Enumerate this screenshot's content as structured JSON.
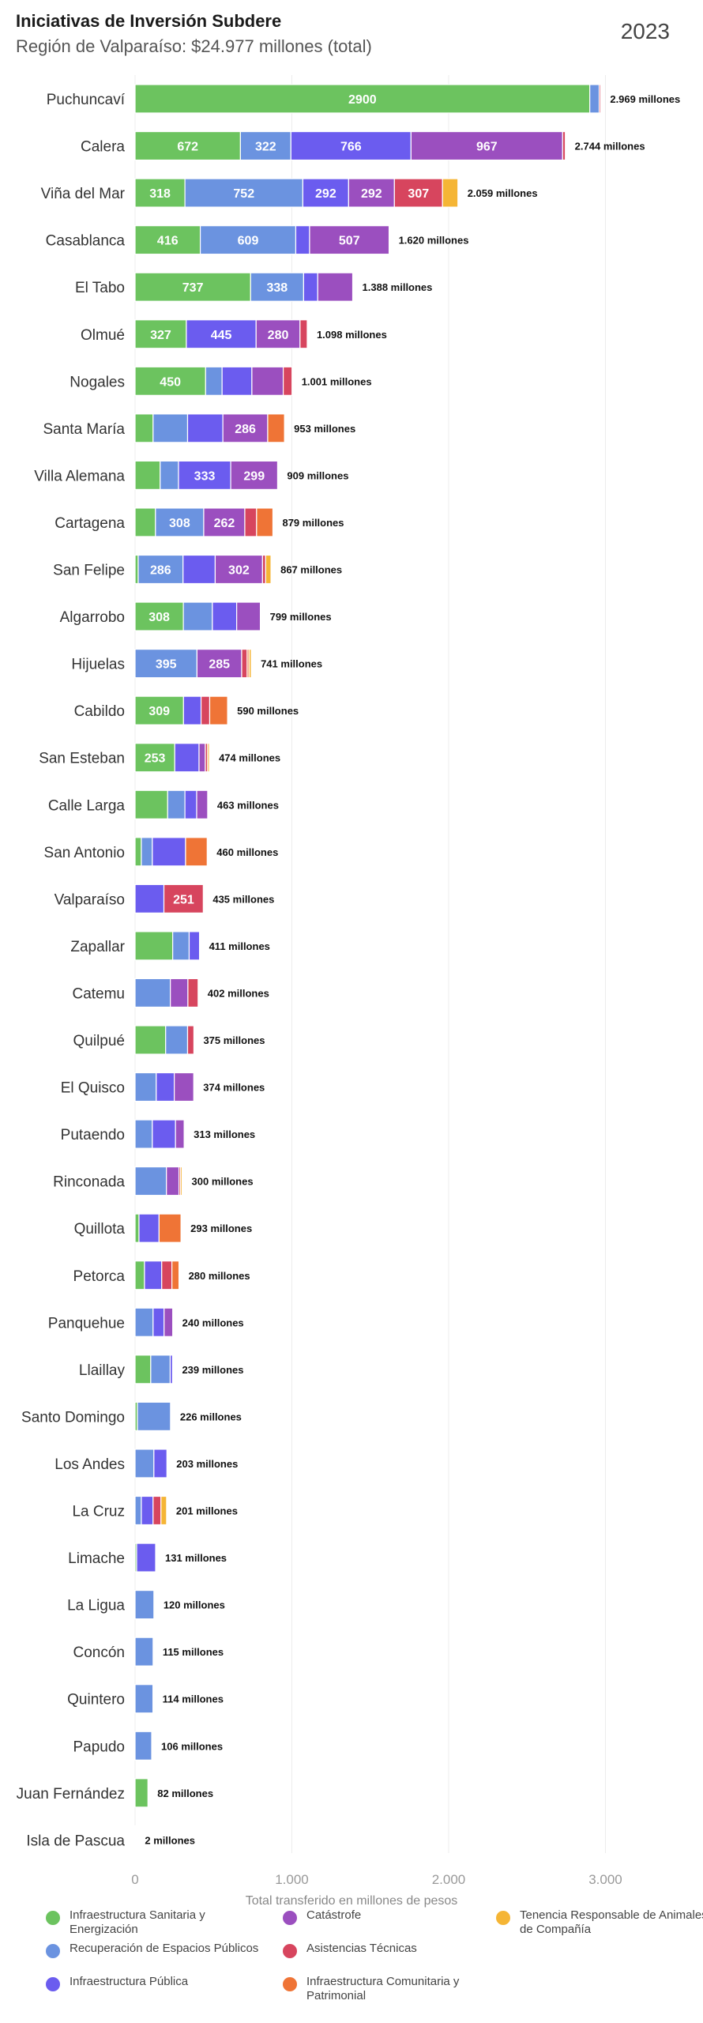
{
  "header": {
    "title": "Iniciativas de Inversión Subdere",
    "subtitle": "Región de Valparaíso: $24.977 millones (total)",
    "year": "2023"
  },
  "colors": {
    "sanitaria": "#6cc35f",
    "espacios": "#6b93e0",
    "publica": "#6b5cef",
    "catastrofe": "#9b4fbf",
    "asistencias": "#d7455e",
    "comunitaria": "#ef7436",
    "tenencia": "#f5b535"
  },
  "chart_data": {
    "type": "bar",
    "orientation": "horizontal",
    "stacked": true,
    "xlabel": "Total transferido en millones de pesos",
    "xlim": [
      0,
      3500
    ],
    "xticks": [
      "0",
      "1.000",
      "2.000",
      "3.000"
    ],
    "grid": true,
    "legend_position": "bottom",
    "series_keys": [
      "sanitaria",
      "espacios",
      "publica",
      "catastrofe",
      "asistencias",
      "comunitaria",
      "tenencia"
    ],
    "series_names": [
      "Infraestructura Sanitaria y Energización",
      "Recuperación de Espacios Públicos",
      "Infraestructura Pública",
      "Catástrofe",
      "Asistencias Técnicas",
      "Infraestructura Comunitaria y Patrimonial",
      "Tenencia Responsable de Animales de Compañía"
    ],
    "rows": [
      {
        "name": "Puchuncaví",
        "total_label": "2.969 millones",
        "values": [
          2900,
          60,
          0,
          0,
          9,
          0,
          0
        ],
        "labels": [
          "2900",
          "",
          "",
          "",
          "",
          "",
          ""
        ]
      },
      {
        "name": "Calera",
        "total_label": "2.744 millones",
        "values": [
          672,
          322,
          766,
          967,
          17,
          0,
          0
        ],
        "labels": [
          "672",
          "322",
          "766",
          "967",
          "",
          "",
          ""
        ]
      },
      {
        "name": "Viña del Mar",
        "total_label": "2.059 millones",
        "values": [
          318,
          752,
          292,
          292,
          307,
          0,
          98
        ],
        "labels": [
          "318",
          "752",
          "292",
          "292",
          "307",
          "",
          ""
        ]
      },
      {
        "name": "Casablanca",
        "total_label": "1.620 millones",
        "values": [
          416,
          609,
          88,
          507,
          0,
          0,
          0
        ],
        "labels": [
          "416",
          "609",
          "",
          "507",
          "",
          "",
          ""
        ]
      },
      {
        "name": "El Tabo",
        "total_label": "1.388 millones",
        "values": [
          737,
          338,
          90,
          223,
          0,
          0,
          0
        ],
        "labels": [
          "737",
          "338",
          "",
          "",
          "",
          "",
          ""
        ]
      },
      {
        "name": "Olmué",
        "total_label": "1.098 millones",
        "values": [
          327,
          0,
          445,
          280,
          46,
          0,
          0
        ],
        "labels": [
          "327",
          "",
          "445",
          "280",
          "",
          "",
          ""
        ]
      },
      {
        "name": "Nogales",
        "total_label": "1.001 millones",
        "values": [
          450,
          105,
          190,
          200,
          56,
          0,
          0
        ],
        "labels": [
          "450",
          "",
          "",
          "",
          "",
          "",
          ""
        ]
      },
      {
        "name": "Santa María",
        "total_label": "953 millones",
        "values": [
          115,
          220,
          225,
          286,
          0,
          107,
          0
        ],
        "labels": [
          "",
          "",
          "",
          "286",
          "",
          "",
          ""
        ]
      },
      {
        "name": "Villa Alemana",
        "total_label": "909 millones",
        "values": [
          160,
          117,
          333,
          299,
          0,
          0,
          0
        ],
        "labels": [
          "",
          "",
          "333",
          "299",
          "",
          "",
          ""
        ]
      },
      {
        "name": "Cartagena",
        "total_label": "879 millones",
        "values": [
          130,
          308,
          0,
          262,
          75,
          104,
          0
        ],
        "labels": [
          "",
          "308",
          "",
          "262",
          "",
          "",
          ""
        ]
      },
      {
        "name": "San Felipe",
        "total_label": "867 millones",
        "values": [
          20,
          286,
          205,
          302,
          20,
          0,
          34
        ],
        "labels": [
          "",
          "286",
          "",
          "302",
          "",
          "",
          ""
        ]
      },
      {
        "name": "Algarrobo",
        "total_label": "799 millones",
        "values": [
          308,
          185,
          155,
          151,
          0,
          0,
          0
        ],
        "labels": [
          "308",
          "",
          "",
          "",
          "",
          "",
          ""
        ]
      },
      {
        "name": "Hijuelas",
        "total_label": "741 millones",
        "values": [
          0,
          395,
          0,
          285,
          35,
          12,
          14
        ],
        "labels": [
          "",
          "395",
          "",
          "285",
          "",
          "",
          ""
        ]
      },
      {
        "name": "Cabildo",
        "total_label": "590 millones",
        "values": [
          309,
          0,
          112,
          0,
          55,
          114,
          0
        ],
        "labels": [
          "309",
          "",
          "",
          "",
          "",
          "",
          ""
        ]
      },
      {
        "name": "San Esteban",
        "total_label": "474 millones",
        "values": [
          253,
          0,
          155,
          40,
          15,
          0,
          11
        ],
        "labels": [
          "253",
          "",
          "",
          "",
          "",
          "",
          ""
        ]
      },
      {
        "name": "Calle Larga",
        "total_label": "463 millones",
        "values": [
          208,
          110,
          75,
          70,
          0,
          0,
          0
        ],
        "labels": [
          "",
          "",
          "",
          "",
          "",
          "",
          ""
        ]
      },
      {
        "name": "San Antonio",
        "total_label": "460 millones",
        "values": [
          40,
          70,
          212,
          0,
          0,
          138,
          0
        ],
        "labels": [
          "",
          "",
          "",
          "",
          "",
          "",
          ""
        ]
      },
      {
        "name": "Valparaíso",
        "total_label": "435 millones",
        "values": [
          0,
          0,
          184,
          0,
          251,
          0,
          0
        ],
        "labels": [
          "",
          "",
          "",
          "",
          "251",
          "",
          ""
        ]
      },
      {
        "name": "Zapallar",
        "total_label": "411 millones",
        "values": [
          240,
          105,
          66,
          0,
          0,
          0,
          0
        ],
        "labels": [
          "",
          "",
          "",
          "",
          "",
          "",
          ""
        ]
      },
      {
        "name": "Catemu",
        "total_label": "402 millones",
        "values": [
          0,
          225,
          0,
          112,
          65,
          0,
          0
        ],
        "labels": [
          "",
          "",
          "",
          "",
          "",
          "",
          ""
        ]
      },
      {
        "name": "Quilpué",
        "total_label": "375 millones",
        "values": [
          195,
          140,
          0,
          0,
          40,
          0,
          0
        ],
        "labels": [
          "",
          "",
          "",
          "",
          "",
          "",
          ""
        ]
      },
      {
        "name": "El Quisco",
        "total_label": "374 millones",
        "values": [
          0,
          135,
          115,
          124,
          0,
          0,
          0
        ],
        "labels": [
          "",
          "",
          "",
          "",
          "",
          "",
          ""
        ]
      },
      {
        "name": "Putaendo",
        "total_label": "313 millones",
        "values": [
          0,
          110,
          148,
          55,
          0,
          0,
          0
        ],
        "labels": [
          "",
          "",
          "",
          "",
          "",
          "",
          ""
        ]
      },
      {
        "name": "Rinconada",
        "total_label": "300 millones",
        "values": [
          0,
          200,
          0,
          80,
          10,
          0,
          10
        ],
        "labels": [
          "",
          "",
          "",
          "",
          "",
          "",
          ""
        ]
      },
      {
        "name": "Quillota",
        "total_label": "293 millones",
        "values": [
          25,
          0,
          128,
          0,
          0,
          140,
          0
        ],
        "labels": [
          "",
          "",
          "",
          "",
          "",
          "",
          ""
        ]
      },
      {
        "name": "Petorca",
        "total_label": "280 millones",
        "values": [
          60,
          0,
          110,
          0,
          65,
          45,
          0
        ],
        "labels": [
          "",
          "",
          "",
          "",
          "",
          "",
          ""
        ]
      },
      {
        "name": "Panquehue",
        "total_label": "240 millones",
        "values": [
          0,
          115,
          70,
          55,
          0,
          0,
          0
        ],
        "labels": [
          "",
          "",
          "",
          "",
          "",
          "",
          ""
        ]
      },
      {
        "name": "Llaillay",
        "total_label": "239 millones",
        "values": [
          100,
          124,
          15,
          0,
          0,
          0,
          0
        ],
        "labels": [
          "",
          "",
          "",
          "",
          "",
          "",
          ""
        ]
      },
      {
        "name": "Santo Domingo",
        "total_label": "226 millones",
        "values": [
          15,
          211,
          0,
          0,
          0,
          0,
          0
        ],
        "labels": [
          "",
          "",
          "",
          "",
          "",
          "",
          ""
        ]
      },
      {
        "name": "Los Andes",
        "total_label": "203 millones",
        "values": [
          0,
          120,
          83,
          0,
          0,
          0,
          0
        ],
        "labels": [
          "",
          "",
          "",
          "",
          "",
          "",
          ""
        ]
      },
      {
        "name": "La Cruz",
        "total_label": "201 millones",
        "values": [
          0,
          40,
          75,
          0,
          50,
          0,
          36
        ],
        "labels": [
          "",
          "",
          "",
          "",
          "",
          "",
          ""
        ]
      },
      {
        "name": "Limache",
        "total_label": "131 millones",
        "values": [
          10,
          0,
          121,
          0,
          0,
          0,
          0
        ],
        "labels": [
          "",
          "",
          "",
          "",
          "",
          "",
          ""
        ]
      },
      {
        "name": "La Ligua",
        "total_label": "120 millones",
        "values": [
          0,
          120,
          0,
          0,
          0,
          0,
          0
        ],
        "labels": [
          "",
          "",
          "",
          "",
          "",
          "",
          ""
        ]
      },
      {
        "name": "Concón",
        "total_label": "115 millones",
        "values": [
          0,
          115,
          0,
          0,
          0,
          0,
          0
        ],
        "labels": [
          "",
          "",
          "",
          "",
          "",
          "",
          ""
        ]
      },
      {
        "name": "Quintero",
        "total_label": "114 millones",
        "values": [
          0,
          114,
          0,
          0,
          0,
          0,
          0
        ],
        "labels": [
          "",
          "",
          "",
          "",
          "",
          "",
          ""
        ]
      },
      {
        "name": "Papudo",
        "total_label": "106 millones",
        "values": [
          0,
          106,
          0,
          0,
          0,
          0,
          0
        ],
        "labels": [
          "",
          "",
          "",
          "",
          "",
          "",
          ""
        ]
      },
      {
        "name": "Juan Fernández",
        "total_label": "82 millones",
        "values": [
          82,
          0,
          0,
          0,
          0,
          0,
          0
        ],
        "labels": [
          "",
          "",
          "",
          "",
          "",
          "",
          ""
        ]
      },
      {
        "name": "Isla de Pascua",
        "total_label": "2 millones",
        "values": [
          0,
          2,
          0,
          0,
          0,
          0,
          0
        ],
        "labels": [
          "",
          "",
          "",
          "",
          "",
          "",
          ""
        ]
      }
    ]
  },
  "legend": {
    "items": [
      {
        "key": "sanitaria",
        "label": "Infraestructura Sanitaria y Energización"
      },
      {
        "key": "catastrofe",
        "label": "Catástrofe"
      },
      {
        "key": "tenencia",
        "label": "Tenencia Responsable de Animales de Compañía"
      },
      {
        "key": "espacios",
        "label": "Recuperación de Espacios Públicos"
      },
      {
        "key": "asistencias",
        "label": "Asistencias Técnicas"
      },
      {
        "key": "publica",
        "label": "Infraestructura Pública"
      },
      {
        "key": "comunitaria",
        "label": "Infraestructura Comunitaria y Patrimonial"
      }
    ]
  }
}
